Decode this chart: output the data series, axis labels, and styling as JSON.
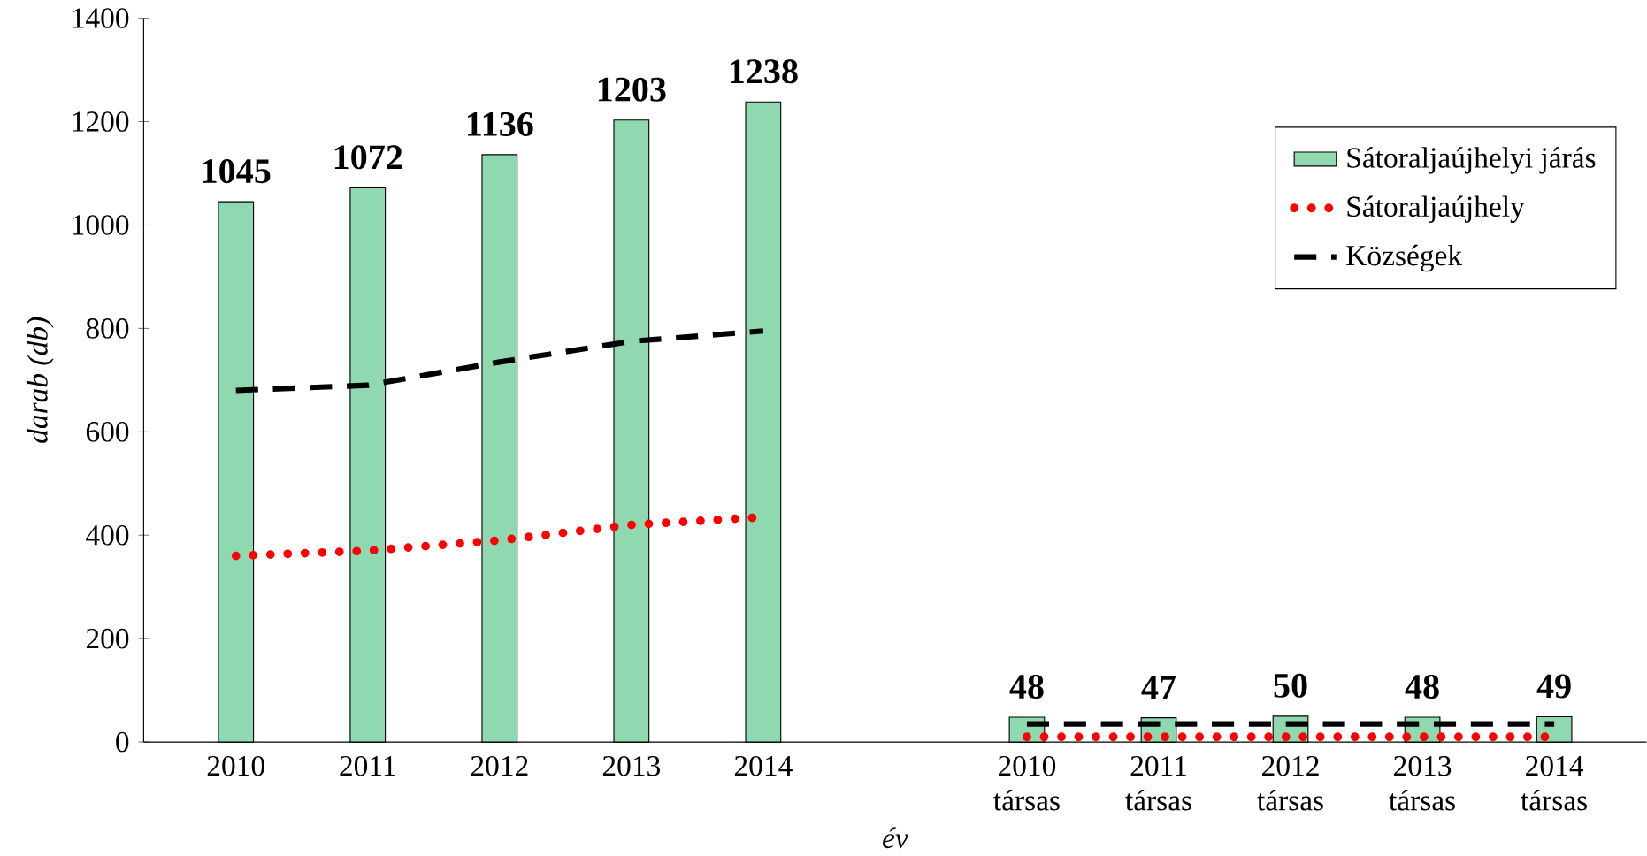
{
  "chart_data": {
    "type": "bar",
    "xlabel": "év",
    "ylabel": "darab (db)",
    "categories": [
      "2010",
      "2011",
      "2012",
      "2013",
      "2014",
      null,
      "2010 társas",
      "2011 társas",
      "2012 társas",
      "2013 társas",
      "2014 társas"
    ],
    "series": [
      {
        "name": "Sátoraljaújhelyi járás",
        "color": "#8fd8b0",
        "values": [
          1045,
          1072,
          1136,
          1203,
          1238,
          null,
          48,
          47,
          50,
          48,
          49
        ],
        "value_labels": [
          "1045",
          "1072",
          "1136",
          "1203",
          "1238",
          null,
          "48",
          "47",
          "50",
          "48",
          "49"
        ]
      },
      {
        "name": "Sátoraljaújhely",
        "type": "line",
        "line_style": "dotted",
        "marker": "none",
        "color": "#ff0000",
        "values": [
          360,
          370,
          390,
          420,
          435,
          null,
          10,
          10,
          10,
          10,
          10
        ]
      },
      {
        "name": "Községek",
        "type": "line",
        "line_style": "dashed",
        "marker": "none",
        "color": "#000000",
        "values": [
          680,
          690,
          735,
          775,
          795,
          null,
          35,
          35,
          35,
          35,
          35
        ]
      }
    ],
    "ylim": [
      0,
      1400
    ],
    "yticks": [
      0,
      200,
      400,
      600,
      800,
      1000,
      1200,
      1400
    ],
    "grid": false,
    "legend": "right"
  }
}
